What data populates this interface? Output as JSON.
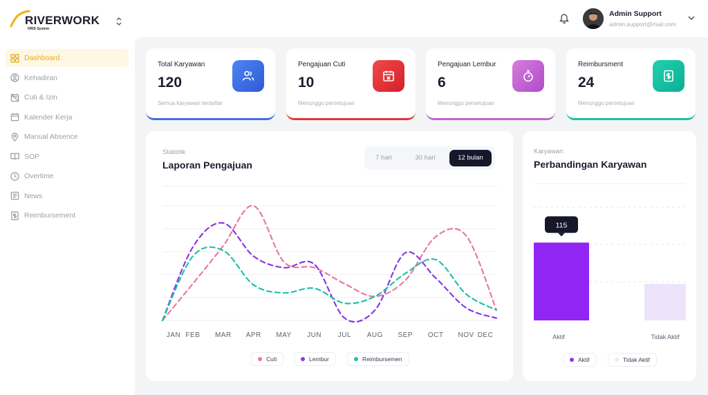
{
  "brand": {
    "name": "RIVERWORK",
    "sub": "HRIS System"
  },
  "sidebar": {
    "items": [
      {
        "label": "Dashboard",
        "icon": "dashboard-icon",
        "active": true
      },
      {
        "label": "Kehadiran",
        "icon": "user-circle-icon"
      },
      {
        "label": "Cuti & Izin",
        "icon": "calendar-off-icon"
      },
      {
        "label": "Kalender Kerja",
        "icon": "calendar-icon"
      },
      {
        "label": "Manual Absence",
        "icon": "map-pin-icon"
      },
      {
        "label": "SOP",
        "icon": "book-icon"
      },
      {
        "label": "Overtime",
        "icon": "clock-icon"
      },
      {
        "label": "News",
        "icon": "news-icon"
      },
      {
        "label": "Reimbursement",
        "icon": "receipt-icon"
      }
    ]
  },
  "user": {
    "name": "Admin Support",
    "email": "admin.support@mail.com"
  },
  "stats": [
    {
      "title": "Total Karyawan",
      "value": "120",
      "subtitle": "Semua karyawan terdaftar",
      "color": "#3f6fe0",
      "icon": "users-icon"
    },
    {
      "title": "Pengajuan Cuti",
      "value": "10",
      "subtitle": "Menunggu persetujuan",
      "color": "#e2343a",
      "icon": "calendar-cross-icon"
    },
    {
      "title": "Pengajuan Lembur",
      "value": "6",
      "subtitle": "Menunggu persetujuan",
      "color": "#c065d0",
      "icon": "stopwatch-icon"
    },
    {
      "title": "Reimbursment",
      "value": "24",
      "subtitle": "Menunggu persetujuan",
      "color": "#17c1a3",
      "icon": "dollar-receipt-icon"
    }
  ],
  "report": {
    "kicker": "Statistik",
    "title": "Laporan Pengajuan",
    "ranges": [
      "7 hari",
      "30 hari",
      "12 bulan"
    ],
    "active_range": "12 bulan"
  },
  "compare": {
    "kicker": "Karyawan",
    "title": "Perbandingan Karyawan"
  },
  "chart_data": [
    {
      "type": "line",
      "x": [
        "JAN",
        "FEB",
        "MAR",
        "APR",
        "MAY",
        "JUN",
        "JUL",
        "AUG",
        "SEP",
        "OCT",
        "NOV",
        "DEC"
      ],
      "series": [
        {
          "name": "Cuti",
          "color": "#ea7a9c",
          "values": [
            0,
            3.2,
            6.5,
            10,
            5.1,
            4.6,
            3.2,
            2.1,
            3.5,
            7.3,
            7.4,
            0.9
          ]
        },
        {
          "name": "Lembur",
          "color": "#8b38e5",
          "values": [
            0,
            6.4,
            8.5,
            5.6,
            4.6,
            4.9,
            0.2,
            0.9,
            5.9,
            3.7,
            1.1,
            0.2
          ]
        },
        {
          "name": "Reimbursemen",
          "color": "#1fc2a6",
          "values": [
            0,
            5.6,
            6.1,
            3.1,
            2.4,
            2.8,
            1.5,
            2.1,
            4.1,
            5.3,
            2.3,
            0.9
          ]
        }
      ],
      "ylim": [
        0,
        10
      ],
      "grid": true,
      "legend": "bottom"
    },
    {
      "type": "bar",
      "categories": [
        "Aktif",
        "Tidak Aktif"
      ],
      "values": [
        115,
        54
      ],
      "colors": [
        "#9125f4",
        "#ede4fb"
      ],
      "ylim": [
        0,
        150
      ],
      "tooltip": "115",
      "legend": [
        "Aktif",
        "Tidak Aktif"
      ],
      "legend_colors": [
        "#8b38e5",
        "#ebebeb"
      ]
    }
  ]
}
